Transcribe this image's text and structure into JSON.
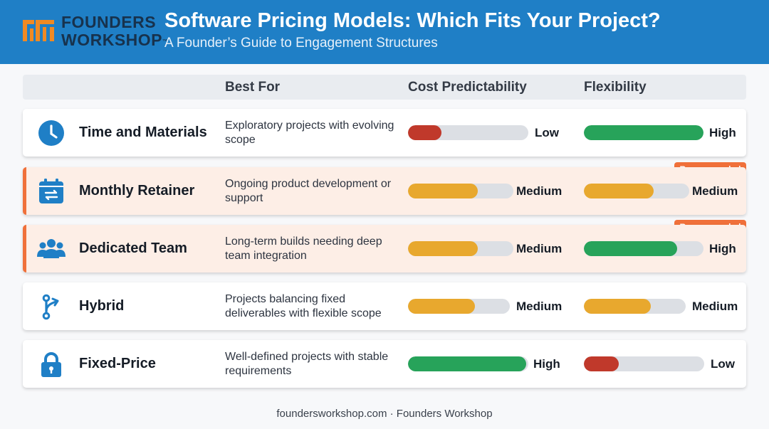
{
  "header": {
    "logo_line1": "FOUNDERS",
    "logo_line2": "WORKSHOP",
    "logo_tm": "™",
    "title": "Software Pricing Models: Which Fits Your Project?",
    "subtitle": "A Founder’s Guide to Engagement Structures"
  },
  "columns": {
    "best_for": "Best For",
    "cost": "Cost Predictability",
    "flexibility": "Flexibility"
  },
  "colors": {
    "header": "#1f7fc6",
    "icon": "#1f7fc6",
    "low": "#c0392b",
    "medium": "#e8a82e",
    "high": "#27a35a",
    "recommended": "#f0703a"
  },
  "rows": [
    {
      "name": "Time and Materials",
      "icon": "clock-icon",
      "best_for": "Exploratory projects with evolving scope",
      "cost": {
        "label": "Low",
        "level": 0.28
      },
      "flexibility": {
        "label": "High",
        "level": 1.0
      },
      "badge": ""
    },
    {
      "name": "Monthly Retainer",
      "icon": "calendar-refresh-icon",
      "best_for": "Ongoing product development or support",
      "cost": {
        "label": "Medium",
        "level": 0.66
      },
      "flexibility": {
        "label": "Medium",
        "level": 0.66
      },
      "badge": "Recommended"
    },
    {
      "name": "Dedicated Team",
      "icon": "team-icon",
      "best_for": "Long-term builds needing deep team integration",
      "cost": {
        "label": "Medium",
        "level": 0.66
      },
      "flexibility": {
        "label": "High",
        "level": 0.78
      },
      "badge": "Recommended"
    },
    {
      "name": "Hybrid",
      "icon": "branch-icon",
      "best_for": "Projects balancing fixed deliverables with flexible scope",
      "cost": {
        "label": "Medium",
        "level": 0.66
      },
      "flexibility": {
        "label": "Medium",
        "level": 0.66
      },
      "badge": ""
    },
    {
      "name": "Fixed-Price",
      "icon": "lock-icon",
      "best_for": "Well-defined projects with stable requirements",
      "cost": {
        "label": "High",
        "level": 0.98
      },
      "flexibility": {
        "label": "Low",
        "level": 0.29
      },
      "badge": ""
    }
  ],
  "footer": "foundersworkshop.com · Founders Workshop"
}
